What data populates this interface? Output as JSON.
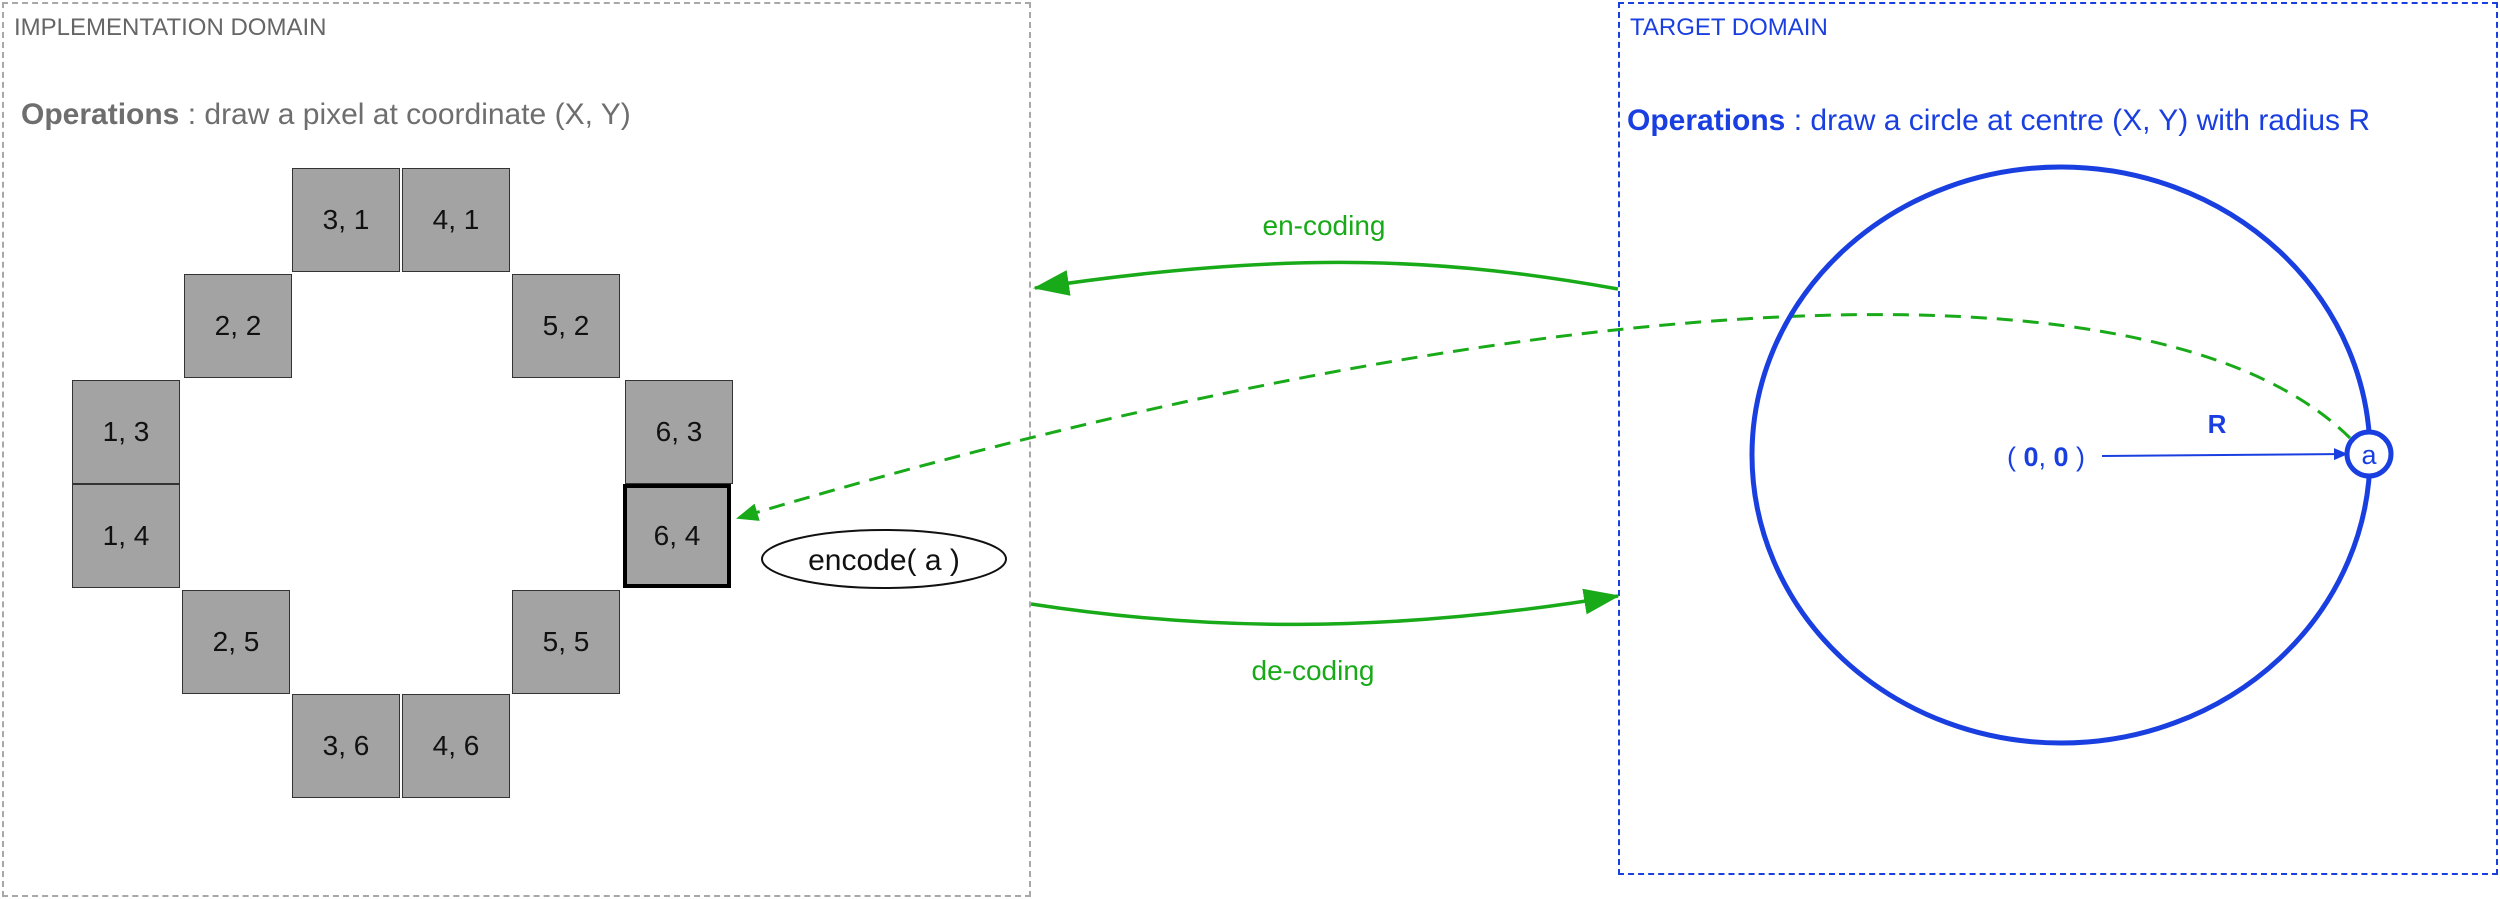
{
  "implementation_domain": {
    "title": "IMPLEMENTATION DOMAIN",
    "operations_label": "Operations",
    "operations_text": " : draw a pixel at coordinate (X, Y)",
    "pixels": [
      "3, 1",
      "4, 1",
      "2, 2",
      "5, 2",
      "1, 3",
      "6, 3",
      "1, 4",
      "6, 4",
      "2, 5",
      "5, 5",
      "3, 6",
      "4, 6"
    ],
    "highlighted_pixel": "6, 4"
  },
  "target_domain": {
    "title": "TARGET DOMAIN",
    "operations_label": "Operations",
    "operations_text": " : draw a circle at centre (X, Y) with radius R",
    "origin_label_open": "( ",
    "origin_x": "0",
    "origin_sep": ", ",
    "origin_y": "0",
    "origin_label_close": " )",
    "radius_label": "R",
    "point_label": "a"
  },
  "mapping": {
    "encoding_label": "en-coding",
    "decoding_label": "de-coding",
    "encode_label": "encode( a )"
  },
  "colors": {
    "green": "#19aa19",
    "blue": "#1a3fe0",
    "pixel_fill": "#a3a3a3",
    "impl_border": "#a8a8a8"
  }
}
